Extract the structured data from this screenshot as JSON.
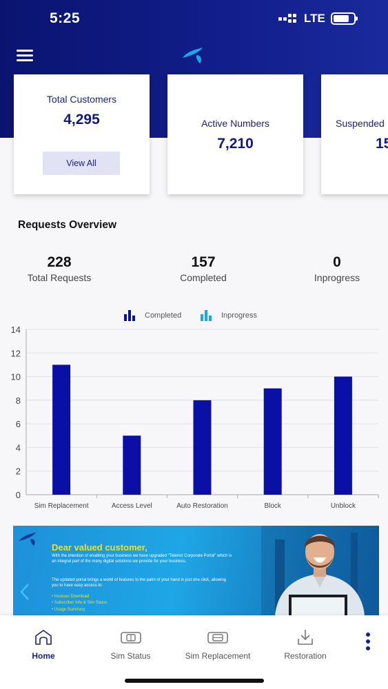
{
  "status_bar": {
    "time": "5:25",
    "network": "LTE"
  },
  "colors": {
    "brand": "#121e8c",
    "bar": "#0a0fa6",
    "accent": "#19a7e6",
    "banner_title": "#f0e21a"
  },
  "cards": [
    {
      "label": "Total Customers",
      "value": "4,295",
      "button": "View All"
    },
    {
      "label": "Active Numbers",
      "value": "7,210"
    },
    {
      "label": "Suspended",
      "value": "15"
    }
  ],
  "requests": {
    "title": "Requests Overview",
    "stats": [
      {
        "value": "228",
        "label": "Total Requests"
      },
      {
        "value": "157",
        "label": "Completed"
      },
      {
        "value": "0",
        "label": "Inprogress"
      }
    ]
  },
  "chart_data": {
    "type": "bar",
    "categories": [
      "Sim Replacement",
      "Access Level",
      "Auto Restoration",
      "Block",
      "Unblock"
    ],
    "series": [
      {
        "name": "Completed",
        "values": [
          11,
          5,
          8,
          9,
          10
        ]
      },
      {
        "name": "Inprogress",
        "values": [
          0,
          0,
          0,
          0,
          0
        ]
      }
    ],
    "ylim": [
      0,
      14
    ],
    "yticks": [
      0,
      2,
      4,
      6,
      8,
      10,
      12,
      14
    ],
    "grid": true,
    "legend": "top-center"
  },
  "banner": {
    "title": "Dear valued customer,",
    "para1": "With the intention of enabling your business we have upgraded \"Telenor Corporate Portal\" which is an integral part of the many digital solutions we provide for your business.",
    "para2": "The updated portal brings a world of features to the palm of your hand in just one click, allowing you to have easy access to:",
    "items": [
      "Invoices Download",
      "Subscriber Info & Sim Status",
      "Usage Summary"
    ]
  },
  "nav": {
    "items": [
      {
        "label": "Home",
        "icon": "home-icon"
      },
      {
        "label": "Sim Status",
        "icon": "sim-card-icon"
      },
      {
        "label": "Sim Replacement",
        "icon": "sim-swap-icon"
      },
      {
        "label": "Restoration",
        "icon": "download-tray-icon"
      }
    ]
  }
}
